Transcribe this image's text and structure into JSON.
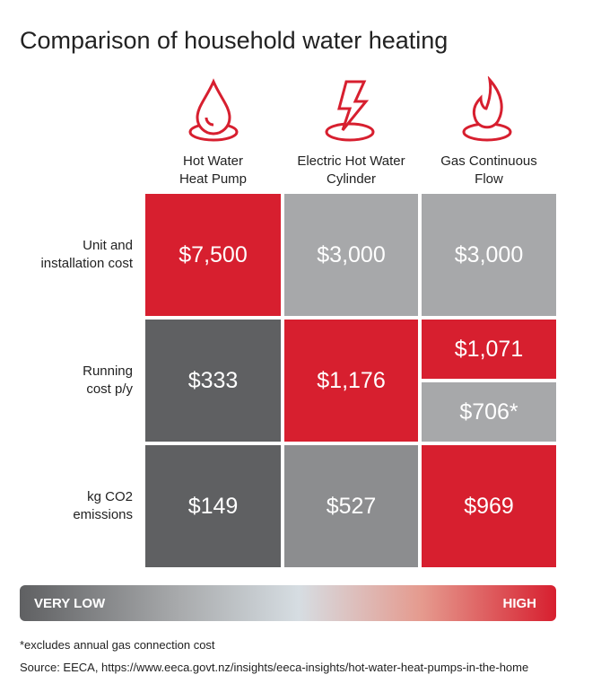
{
  "title": "Comparison of household water heating",
  "columns": [
    {
      "label_lines": [
        "Hot Water",
        "Heat Pump"
      ]
    },
    {
      "label_lines": [
        "Electric Hot Water",
        "Cylinder"
      ]
    },
    {
      "label_lines": [
        "Gas Continuous",
        "Flow"
      ]
    }
  ],
  "rows": [
    {
      "label_lines": [
        "Unit and",
        "installation cost"
      ],
      "cells": [
        {
          "parts": [
            {
              "text": "$7,500",
              "color": "#d71f2f"
            }
          ]
        },
        {
          "parts": [
            {
              "text": "$3,000",
              "color": "#a7a8aa"
            }
          ]
        },
        {
          "parts": [
            {
              "text": "$3,000",
              "color": "#a7a8aa"
            }
          ]
        }
      ]
    },
    {
      "label_lines": [
        "Running",
        "cost p/y"
      ],
      "cells": [
        {
          "parts": [
            {
              "text": "$333",
              "color": "#5f6062"
            }
          ]
        },
        {
          "parts": [
            {
              "text": "$1,176",
              "color": "#d71f2f"
            }
          ]
        },
        {
          "parts": [
            {
              "text": "$1,071",
              "color": "#d71f2f"
            },
            {
              "text": "$706*",
              "color": "#a7a8aa"
            }
          ]
        }
      ]
    },
    {
      "label_lines": [
        "kg CO2",
        "emissions"
      ],
      "cells": [
        {
          "parts": [
            {
              "text": "$149",
              "color": "#5f6062"
            }
          ]
        },
        {
          "parts": [
            {
              "text": "$527",
              "color": "#8c8d8f"
            }
          ]
        },
        {
          "parts": [
            {
              "text": "$969",
              "color": "#d71f2f"
            }
          ]
        }
      ]
    }
  ],
  "scale": {
    "low": "VERY LOW",
    "high": "HIGH"
  },
  "footnote": "*excludes annual gas connection cost",
  "source": "Source: EECA, https://www.eeca.govt.nz/insights/eeca-insights/hot-water-heat-pumps-in-the-home"
}
